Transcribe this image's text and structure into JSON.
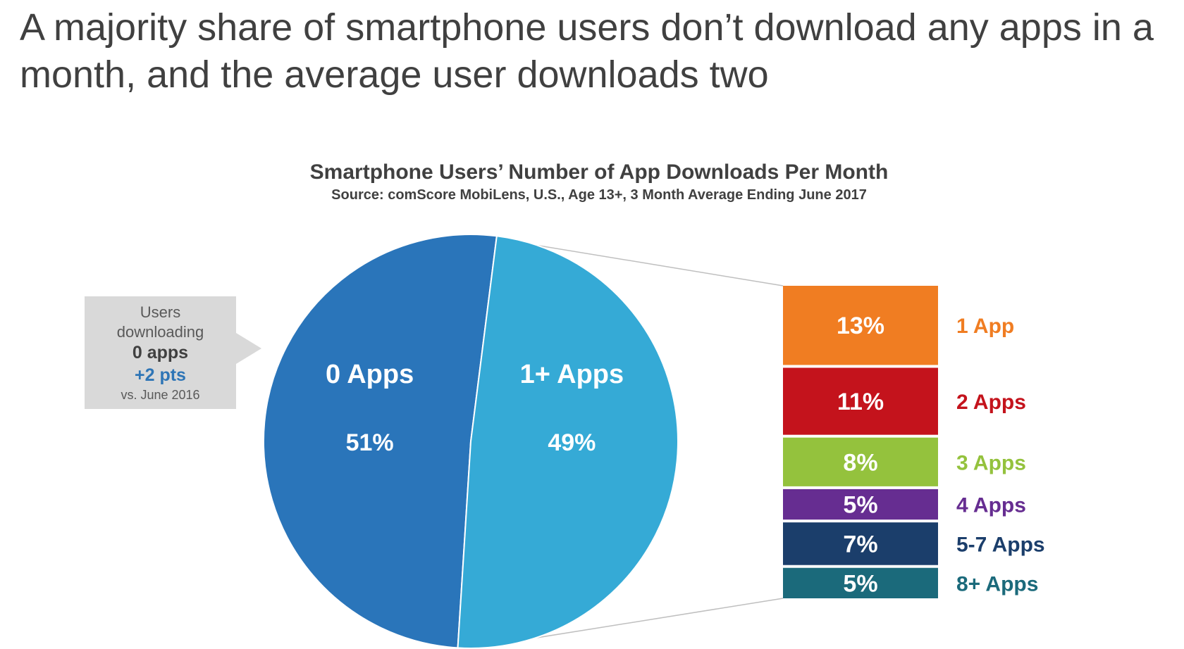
{
  "page": {
    "title": "A majority share of smartphone users don’t download any apps in a month, and the average user downloads two"
  },
  "callout": {
    "line1": "Users",
    "line2": "downloading",
    "line3": "0 apps",
    "line4": "+2 pts",
    "line5": "vs. June 2016"
  },
  "chart_data": {
    "type": "pie",
    "title": "Smartphone Users’ Number of App Downloads Per Month",
    "subtitle": "Source: comScore MobiLens, U.S., Age 13+, 3 Month Average Ending June 2017",
    "slices": [
      {
        "label": "0 Apps",
        "value": 51,
        "display": "51%",
        "color": "#2a75ba"
      },
      {
        "label": "1+ Apps",
        "value": 49,
        "display": "49%",
        "color": "#35aad6"
      }
    ],
    "breakdown": {
      "type": "stacked-bar",
      "of": "1+ Apps",
      "segments": [
        {
          "label": "1 App",
          "value": 13,
          "display": "13%",
          "color": "#f07d22"
        },
        {
          "label": "2 Apps",
          "value": 11,
          "display": "11%",
          "color": "#c4131c"
        },
        {
          "label": "3 Apps",
          "value": 8,
          "display": "8%",
          "color": "#94c23d"
        },
        {
          "label": "4 Apps",
          "value": 5,
          "display": "5%",
          "color": "#662d91"
        },
        {
          "label": "5-7 Apps",
          "value": 7,
          "display": "7%",
          "color": "#1b3e6b"
        },
        {
          "label": "8+ Apps",
          "value": 5,
          "display": "5%",
          "color": "#1b6a7b"
        }
      ]
    }
  }
}
